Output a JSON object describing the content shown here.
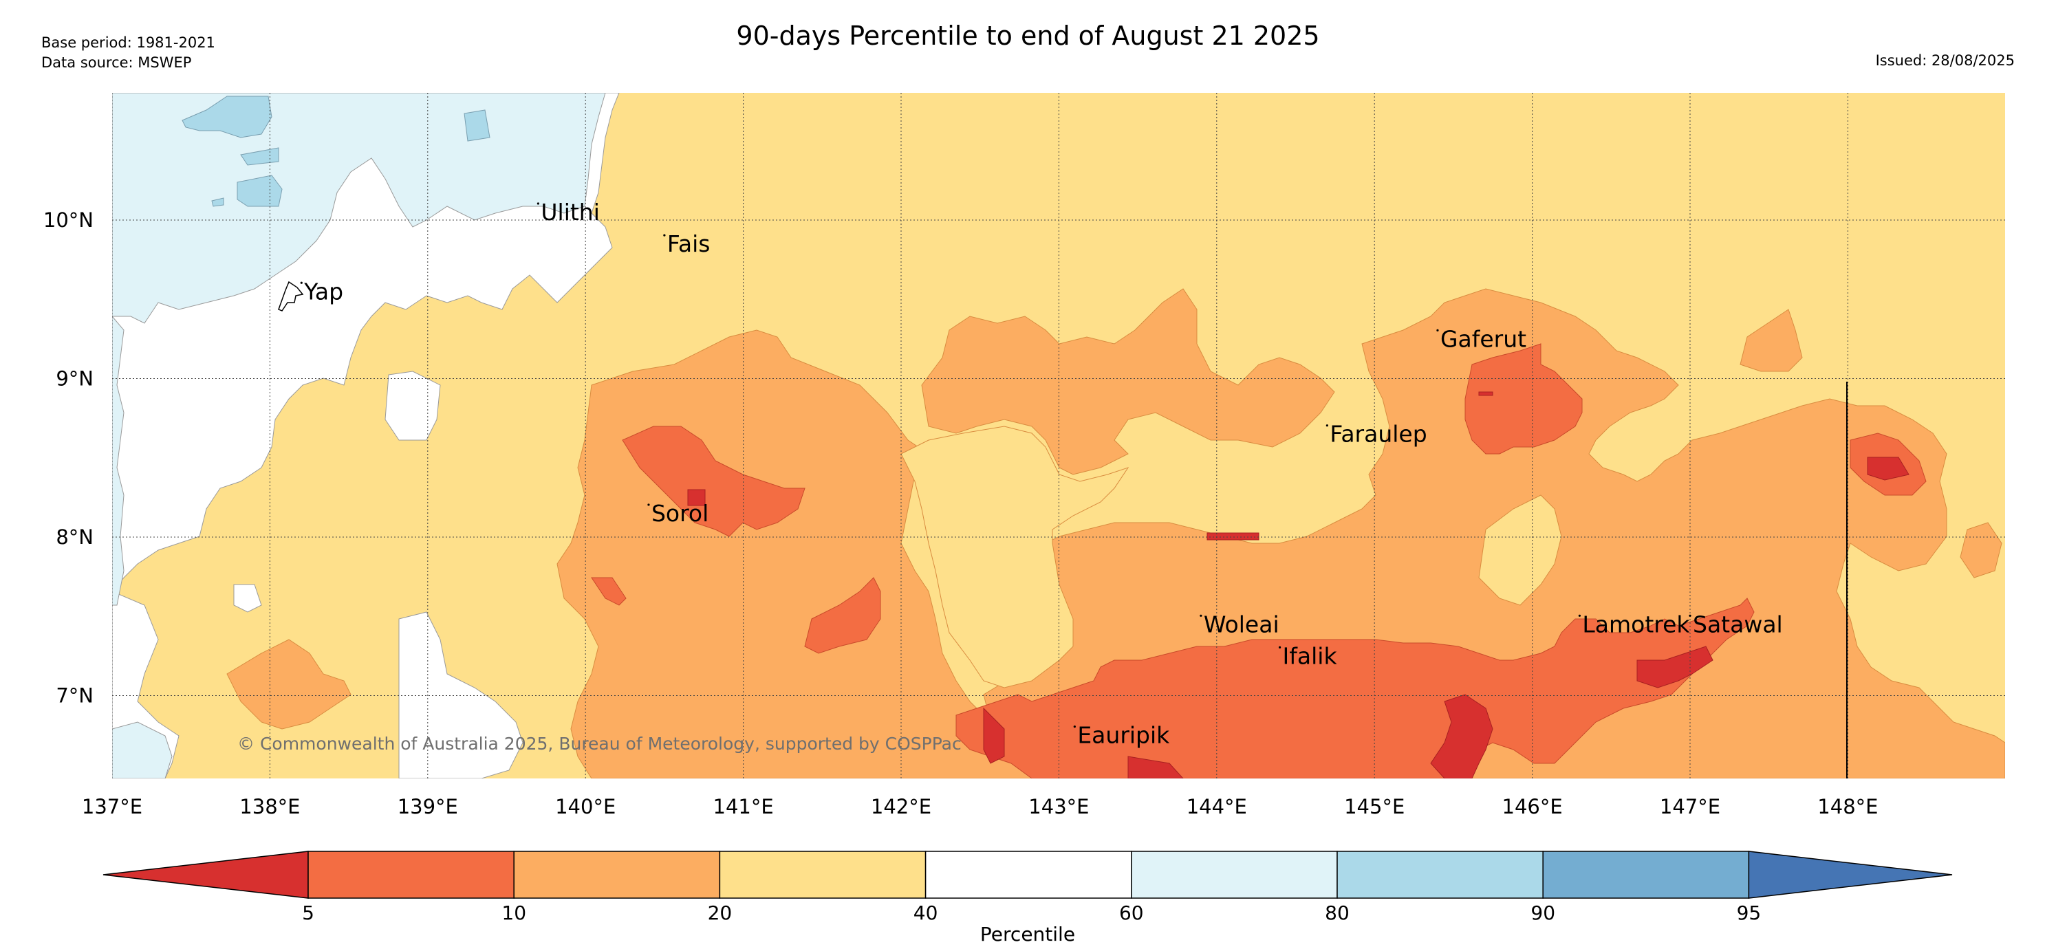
{
  "header": {
    "base_period": "Base period: 1981-2021",
    "data_source": "Data source: MSWEP",
    "title": "90-days Percentile to end of August 21 2025",
    "issued": "Issued: 28/08/2025"
  },
  "map": {
    "lon_range": [
      137,
      149
    ],
    "lat_range": [
      6.5,
      10.8
    ],
    "lon_ticks": [
      "137°E",
      "138°E",
      "139°E",
      "140°E",
      "141°E",
      "142°E",
      "143°E",
      "144°E",
      "145°E",
      "146°E",
      "147°E",
      "148°E"
    ],
    "lat_ticks": [
      "10°N",
      "9°N",
      "8°N",
      "7°N"
    ],
    "copyright": "© Commonwealth of Australia 2025, Bureau of Meteorology, supported by COSPPac",
    "places": [
      {
        "name": "Yap",
        "lon": 138.2,
        "lat": 9.5
      },
      {
        "name": "Ulithi",
        "lon": 139.7,
        "lat": 10.0
      },
      {
        "name": "Fais",
        "lon": 140.5,
        "lat": 9.8
      },
      {
        "name": "Gaferut",
        "lon": 145.4,
        "lat": 9.2
      },
      {
        "name": "Faraulep",
        "lon": 144.7,
        "lat": 8.6
      },
      {
        "name": "Sorol",
        "lon": 140.4,
        "lat": 8.1
      },
      {
        "name": "Woleai",
        "lon": 143.9,
        "lat": 7.4
      },
      {
        "name": "Ifalik",
        "lon": 144.4,
        "lat": 7.2
      },
      {
        "name": "Lamotrek",
        "lon": 146.3,
        "lat": 7.4
      },
      {
        "name": "Satawal",
        "lon": 147.0,
        "lat": 7.4
      },
      {
        "name": "Eauripik",
        "lon": 143.1,
        "lat": 6.7
      }
    ]
  },
  "colorbar": {
    "title": "Percentile",
    "boundaries": [
      "5",
      "10",
      "20",
      "40",
      "60",
      "80",
      "90",
      "95"
    ],
    "colors": [
      "#d7302f",
      "#f36d43",
      "#fcad61",
      "#fee08b",
      "#ffffff",
      "#e0f3f8",
      "#abd9e9",
      "#74add1",
      "#4575b4"
    ]
  }
}
